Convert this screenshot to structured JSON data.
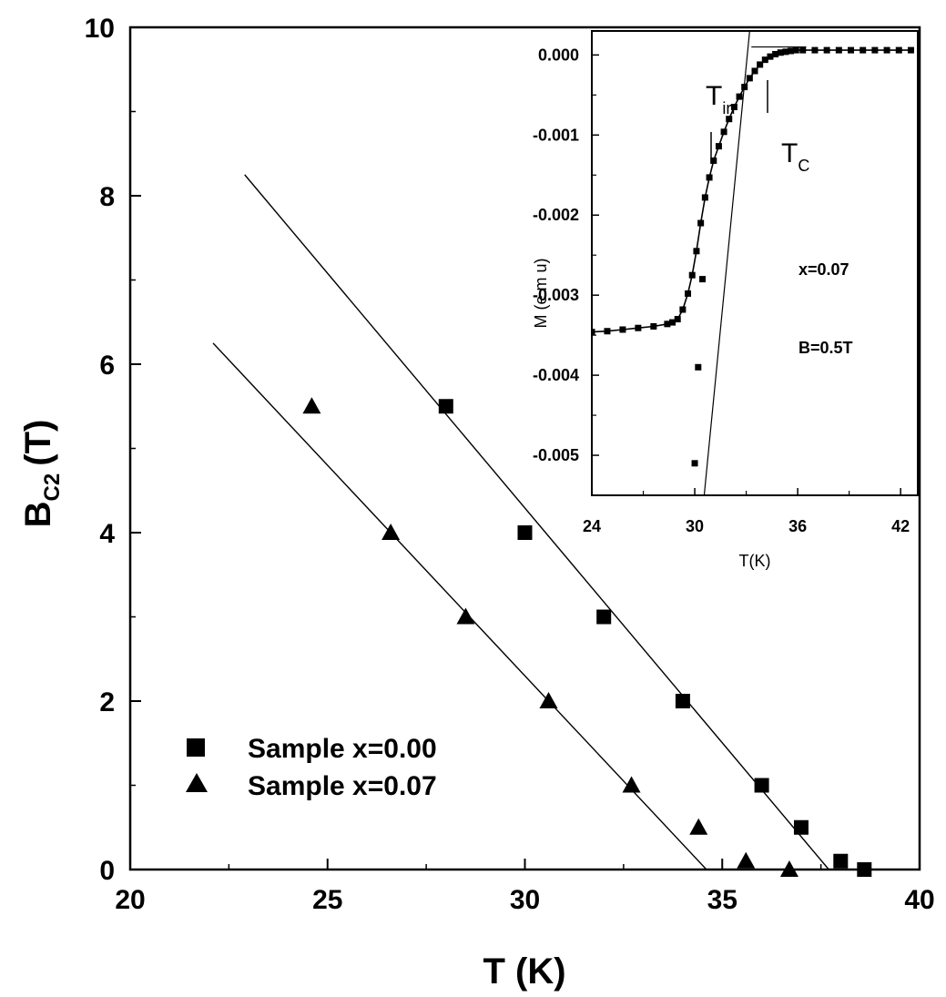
{
  "chart_data": [
    {
      "type": "scatter",
      "title": "",
      "xlabel": "T (K)",
      "ylabel_main": "B",
      "ylabel_sub": "C2",
      "ylabel_unit": "(T)",
      "xlim": [
        20,
        40
      ],
      "ylim": [
        0,
        10
      ],
      "x_ticks": [
        "20",
        "25",
        "30",
        "35",
        "40"
      ],
      "y_ticks": [
        "0",
        "2",
        "4",
        "6",
        "8",
        "10"
      ],
      "grid": false,
      "legend_position": "lower-left",
      "series": [
        {
          "name": "Sample x=0.00",
          "marker": "square",
          "points": [
            [
              28.0,
              5.5
            ],
            [
              30.0,
              4.0
            ],
            [
              32.0,
              3.0
            ],
            [
              34.0,
              2.0
            ],
            [
              36.0,
              1.0
            ],
            [
              37.0,
              0.5
            ],
            [
              38.0,
              0.1
            ],
            [
              38.6,
              0.0
            ]
          ],
          "fit_line": [
            [
              22.9,
              8.25
            ],
            [
              37.7,
              0.0
            ]
          ]
        },
        {
          "name": "Sample x=0.07",
          "marker": "triangle",
          "points": [
            [
              24.6,
              5.5
            ],
            [
              26.6,
              4.0
            ],
            [
              28.5,
              3.0
            ],
            [
              30.6,
              2.0
            ],
            [
              32.7,
              1.0
            ],
            [
              34.4,
              0.5
            ],
            [
              35.6,
              0.1
            ],
            [
              36.7,
              0.0
            ]
          ],
          "fit_line": [
            [
              22.1,
              6.25
            ],
            [
              34.6,
              0.0
            ]
          ]
        }
      ]
    },
    {
      "type": "line",
      "title": "",
      "xlabel": "T(K)",
      "ylabel": "M (e m u)",
      "xlim": [
        24,
        43
      ],
      "ylim": [
        -0.0055,
        0.0003
      ],
      "x_ticks": [
        "24",
        "30",
        "36",
        "42"
      ],
      "y_ticks": [
        "0.000",
        "-0.001",
        "-0.002",
        "-0.003",
        "-0.004",
        "-0.005"
      ],
      "grid": false,
      "series": [
        {
          "name": "",
          "marker": "square",
          "points": [
            [
              24.0,
              -0.00346
            ],
            [
              24.9,
              -0.00345
            ],
            [
              25.8,
              -0.00343
            ],
            [
              26.7,
              -0.00341
            ],
            [
              27.6,
              -0.00339
            ],
            [
              28.4,
              -0.00336
            ],
            [
              28.7,
              -0.00334
            ],
            [
              29.0,
              -0.0033
            ],
            [
              29.3,
              -0.00318
            ],
            [
              29.6,
              -0.00298
            ],
            [
              29.85,
              -0.00275
            ],
            [
              30.1,
              -0.00245
            ],
            [
              30.35,
              -0.0021
            ],
            [
              30.6,
              -0.00178
            ],
            [
              30.85,
              -0.00153
            ],
            [
              31.1,
              -0.00132
            ],
            [
              31.4,
              -0.00114
            ],
            [
              31.7,
              -0.00096
            ],
            [
              32.0,
              -0.0008
            ],
            [
              32.3,
              -0.00065
            ],
            [
              32.6,
              -0.00052
            ],
            [
              32.9,
              -0.0004
            ],
            [
              33.2,
              -0.00029
            ],
            [
              33.5,
              -0.0002
            ],
            [
              33.8,
              -0.00012
            ],
            [
              34.1,
              -6e-05
            ],
            [
              34.4,
              -2e-05
            ],
            [
              34.7,
              1e-05
            ],
            [
              35.0,
              3e-05
            ],
            [
              35.3,
              4e-05
            ],
            [
              35.6,
              5e-05
            ],
            [
              35.9,
              6e-05
            ],
            [
              36.3,
              6e-05
            ],
            [
              37.0,
              6e-05
            ],
            [
              37.7,
              6e-05
            ],
            [
              38.4,
              6e-05
            ],
            [
              39.1,
              6e-05
            ],
            [
              39.8,
              6e-05
            ],
            [
              40.5,
              6e-05
            ],
            [
              41.2,
              6e-05
            ],
            [
              41.9,
              6e-05
            ],
            [
              42.6,
              6e-05
            ]
          ],
          "tangent_lines": [
            [
              [
                29.5,
                -0.0078
              ],
              [
                33.2,
                0.0003
              ]
            ],
            [
              [
                33.3,
                0.0001
              ],
              [
                36.5,
                0.0001
              ]
            ]
          ]
        }
      ],
      "annotations": [
        {
          "text": "T",
          "sub": "irr",
          "at": [
            30.3,
            -0.0005
          ]
        },
        {
          "text": "T",
          "sub": "C",
          "at": [
            34.5,
            -0.0013
          ]
        },
        {
          "text": "x=0.07",
          "at": [
            37.5,
            -0.0029
          ]
        },
        {
          "text": "B=0.5T",
          "at": [
            37.5,
            -0.004
          ]
        }
      ]
    }
  ]
}
